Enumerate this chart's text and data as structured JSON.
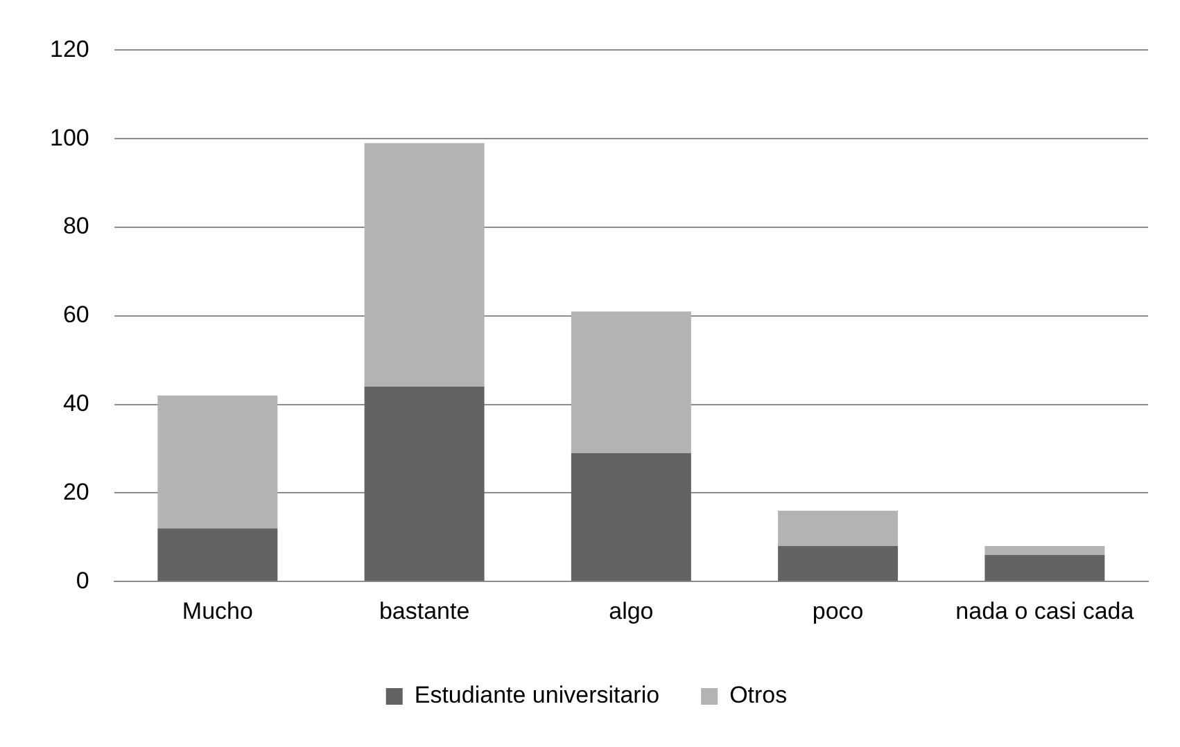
{
  "chart_data": {
    "type": "bar",
    "stacked": true,
    "categories": [
      "Mucho",
      "bastante",
      "algo",
      "poco",
      "nada o casi cada"
    ],
    "series": [
      {
        "name": "Estudiante universitario",
        "color": "#636363",
        "values": [
          12,
          44,
          29,
          8,
          6
        ]
      },
      {
        "name": "Otros",
        "color": "#b3b3b3",
        "values": [
          30,
          55,
          32,
          8,
          2
        ]
      }
    ],
    "ylim": [
      0,
      120
    ],
    "yticks": [
      0,
      20,
      40,
      60,
      80,
      100,
      120
    ],
    "grid": "y",
    "legend": "bottom"
  }
}
